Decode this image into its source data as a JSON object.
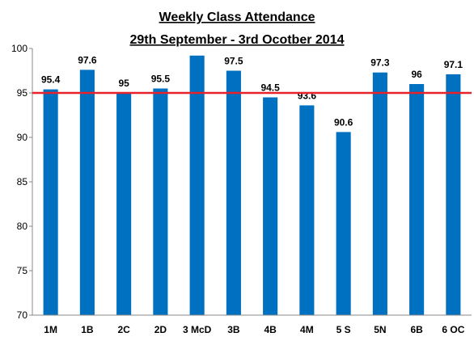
{
  "chart_data": {
    "type": "bar",
    "title": [
      "Weekly Class Attendance",
      "29th September - 3rd Ocotber 2014"
    ],
    "xlabel": "",
    "ylabel": "",
    "categories": [
      "1M",
      "1B",
      "2C",
      "2D",
      "3 McD",
      "3B",
      "4B",
      "4M",
      "5 S",
      "5N",
      "6B",
      "6 OC"
    ],
    "values": [
      95.4,
      97.6,
      95,
      95.5,
      99.2,
      97.5,
      94.5,
      93.6,
      90.6,
      97.3,
      96,
      97.1
    ],
    "data_labels": [
      "95.4",
      "97.6",
      "95",
      "95.5",
      "",
      "97.5",
      "94.5",
      "93.6",
      "90.6",
      "97.3",
      "96",
      "97.1"
    ],
    "ylim": [
      70,
      100
    ],
    "yticks": [
      70,
      75,
      80,
      85,
      90,
      95,
      100
    ],
    "target_line": 95,
    "grid": false,
    "legend": "none",
    "colors": {
      "bar": "#0070C0",
      "target_line": "#E8222A",
      "axis": "#888888"
    }
  }
}
